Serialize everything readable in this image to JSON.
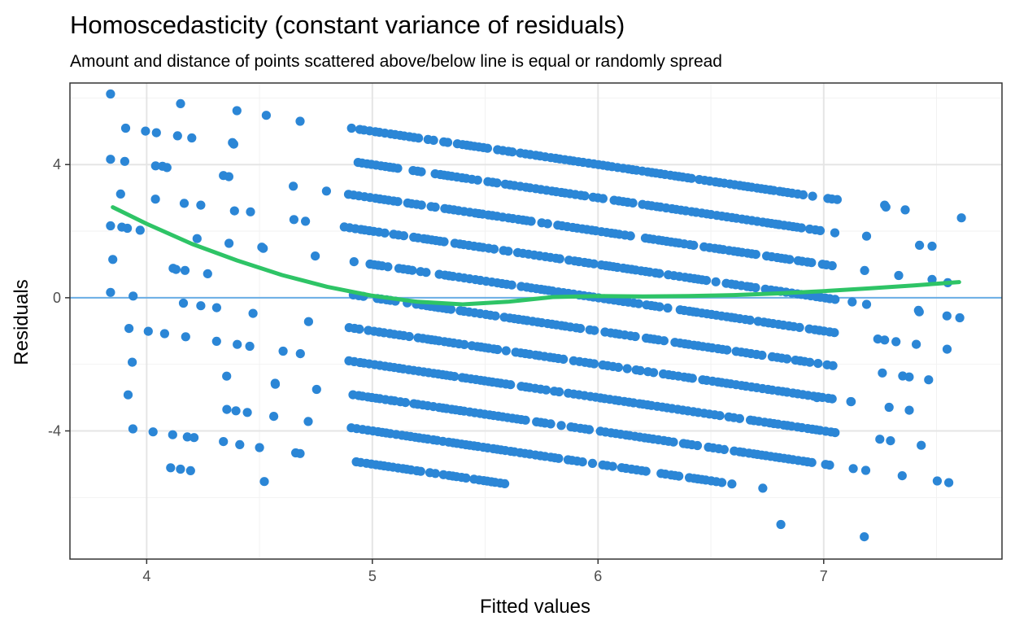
{
  "chart_data": {
    "type": "scatter",
    "title": "Homoscedasticity (constant variance of residuals)",
    "subtitle": "Amount and distance of points scattered above/below line is equal or randomly spread",
    "xlabel": "Fitted values",
    "ylabel": "Residuals",
    "xlim": [
      3.66,
      7.79
    ],
    "ylim": [
      -7.85,
      6.45
    ],
    "x_ticks": [
      4,
      5,
      6,
      7
    ],
    "y_ticks": [
      -4,
      0,
      4
    ],
    "x_tick_labels": [
      "4",
      "5",
      "6",
      "7"
    ],
    "y_tick_labels": [
      "-4",
      "0",
      "4"
    ],
    "grid": true,
    "reference_line_y": 0,
    "colors": {
      "points": "#2b86d6",
      "reference_line": "#6aaee6",
      "smooth_line": "#2ec466",
      "grid_major": "#e5e5e5",
      "grid_minor": "#f2f2f2",
      "panel_border": "#333333"
    },
    "band_offsets": [
      -10,
      -9,
      -8,
      -7,
      -6,
      -5,
      -4,
      -3,
      -2,
      -1,
      0,
      1,
      2,
      3,
      4,
      5,
      6,
      7,
      8,
      9,
      10
    ],
    "band_slope": -1,
    "point_x_range": [
      3.84,
      7.61
    ],
    "scattered_points": [
      [
        3.84,
        6.12
      ],
      [
        3.85,
        1.15
      ],
      [
        3.89,
        2.12
      ],
      [
        3.94,
        0.05
      ],
      [
        4.07,
        3.95
      ],
      [
        4.15,
        5.83
      ],
      [
        4.2,
        4.8
      ],
      [
        4.24,
        2.78
      ],
      [
        4.31,
        -0.3
      ],
      [
        4.34,
        3.67
      ],
      [
        4.38,
        4.66
      ],
      [
        4.4,
        5.62
      ],
      [
        4.46,
        2.58
      ],
      [
        4.53,
        5.48
      ],
      [
        4.57,
        -2.6
      ],
      [
        4.68,
        5.3
      ],
      [
        4.18,
        -4.18
      ],
      [
        4.21,
        -4.2
      ],
      [
        4.34,
        -4.32
      ],
      [
        4.5,
        -4.5
      ],
      [
        4.68,
        -4.68
      ],
      [
        4.13,
        0.85
      ],
      [
        4.17,
        0.82
      ],
      [
        4.27,
        0.72
      ],
      [
        4.51,
        1.52
      ],
      [
        7.48,
        1.55
      ],
      [
        7.61,
        2.4
      ],
      [
        7.42,
        -0.38
      ],
      [
        7.41,
        -1.4
      ],
      [
        7.18,
        -7.18
      ],
      [
        6.81,
        -6.81
      ],
      [
        6.73,
        -5.72
      ],
      [
        7.35,
        -2.35
      ],
      [
        7.26,
        -2.26
      ],
      [
        7.12,
        -3.12
      ],
      [
        6.97,
        -3.0
      ],
      [
        7.27,
        -1.27
      ],
      [
        7.48,
        0.55
      ],
      [
        7.19,
        -0.2
      ],
      [
        7.27,
        2.78
      ],
      [
        7.19,
        1.85
      ],
      [
        7.06,
        2.95
      ],
      [
        6.8,
        2.2
      ]
    ],
    "smooth_line": {
      "x": [
        3.85,
        4.0,
        4.2,
        4.4,
        4.6,
        4.8,
        5.0,
        5.2,
        5.4,
        5.6,
        5.8,
        6.0,
        6.2,
        6.4,
        6.6,
        6.8,
        7.0,
        7.2,
        7.4,
        7.6
      ],
      "y": [
        2.72,
        2.22,
        1.62,
        1.12,
        0.68,
        0.33,
        0.06,
        -0.12,
        -0.2,
        -0.12,
        0.02,
        0.05,
        0.04,
        0.05,
        0.08,
        0.13,
        0.2,
        0.28,
        0.37,
        0.47
      ]
    }
  }
}
